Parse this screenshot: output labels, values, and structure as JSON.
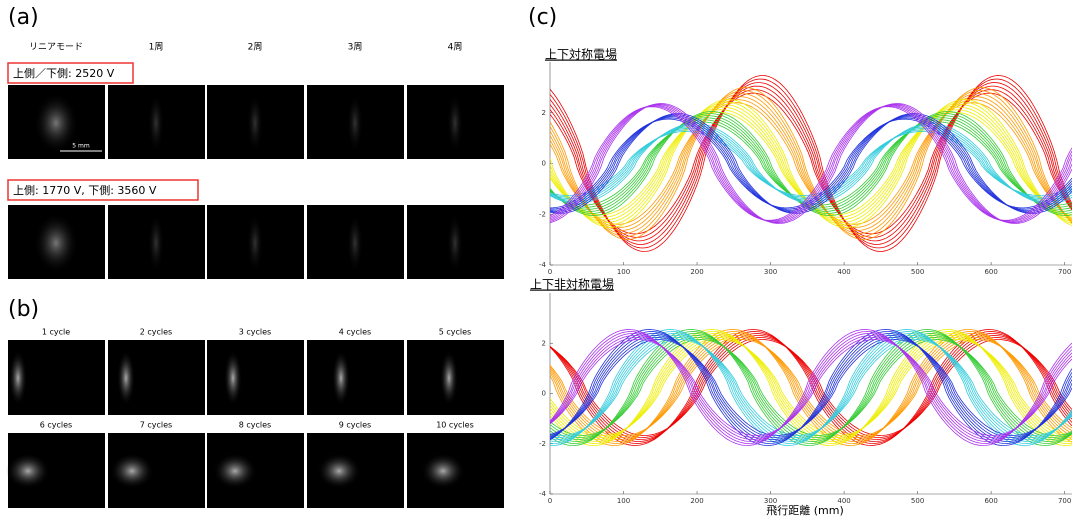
{
  "panel_a": {
    "label": "(a)",
    "columns": [
      "リニアモード",
      "1周",
      "2周",
      "3周",
      "4周"
    ],
    "rows": [
      {
        "condition": "上側／下側: 2520 V"
      },
      {
        "condition": "上側: 1770 V, 下側: 3560 V"
      }
    ],
    "scale_bar": "5 mm"
  },
  "panel_b": {
    "label": "(b)",
    "cycles": [
      "1 cycle",
      "2 cycles",
      "3 cycles",
      "4 cycles",
      "5 cycles",
      "6 cycles",
      "7 cycles",
      "8 cycles",
      "9 cycles",
      "10 cycles"
    ]
  },
  "panel_c": {
    "label": "(c)",
    "xlabel": "飛行距離 (mm)",
    "plots": [
      {
        "title": "上下対称電場",
        "xlim": [
          0,
          710
        ],
        "xticks": [
          0,
          100,
          200,
          300,
          400,
          500,
          600,
          700
        ],
        "ylim": [
          -4,
          4
        ],
        "yticks": [
          -4,
          -2,
          0,
          2
        ]
      },
      {
        "title": "上下非対称電場",
        "xlim": [
          0,
          710
        ],
        "xticks": [
          0,
          100,
          200,
          300,
          400,
          500,
          600,
          700
        ],
        "ylim": [
          -4,
          4
        ],
        "yticks": [
          -4,
          -2,
          0,
          2
        ]
      }
    ]
  }
}
